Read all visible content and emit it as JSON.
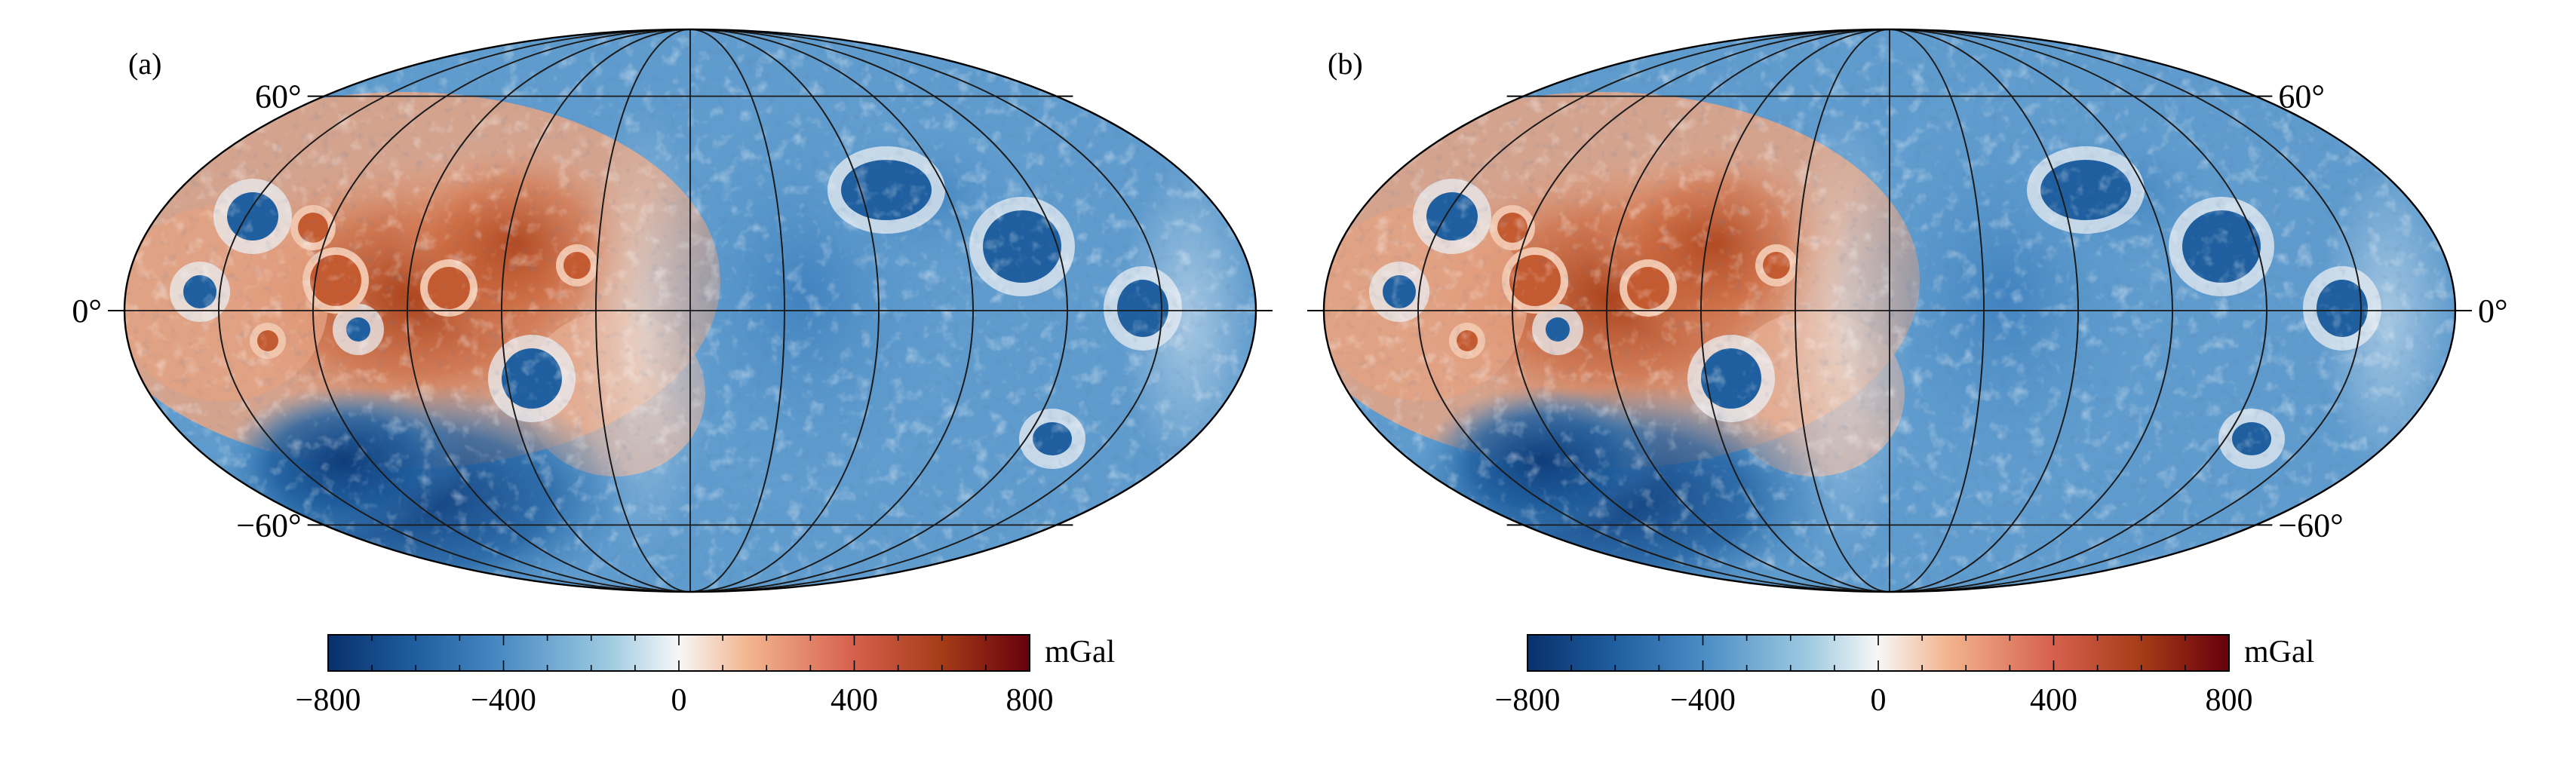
{
  "panels": [
    {
      "label": "(a)",
      "lat_labels": {
        "north": "60°",
        "equator": "0°",
        "south": "−60°"
      },
      "lat_label_side": "left",
      "colorbar": {
        "unit": "mGal",
        "ticks": [
          "−800",
          "−400",
          "0",
          "400",
          "800"
        ]
      }
    },
    {
      "label": "(b)",
      "lat_labels": {
        "north": "60°",
        "equator": "0°",
        "south": "−60°"
      },
      "lat_label_side": "right",
      "colorbar": {
        "unit": "mGal",
        "ticks": [
          "−800",
          "−400",
          "0",
          "400",
          "800"
        ]
      }
    }
  ],
  "colormap": [
    "#08306b",
    "#1f5f9f",
    "#4a8cc4",
    "#9ecae1",
    "#f7f7f7",
    "#f2b48d",
    "#d6604d",
    "#a53c17",
    "#67000d"
  ],
  "colormap_range": [
    -800,
    800
  ]
}
